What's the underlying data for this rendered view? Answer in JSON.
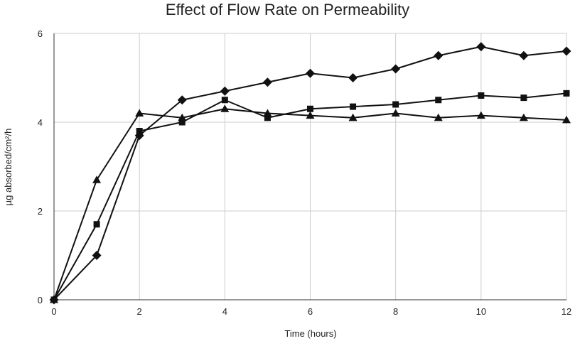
{
  "chart_data": {
    "type": "line",
    "title": "Effect of Flow Rate on Permeability",
    "xlabel": "Time (hours)",
    "ylabel": "µg absorbed/cm²/h",
    "xlim": [
      0,
      12
    ],
    "ylim": [
      0,
      6
    ],
    "x_ticks": [
      "0",
      "2",
      "4",
      "6",
      "8",
      "10",
      "12"
    ],
    "y_ticks": [
      "0",
      "2",
      "4",
      "6"
    ],
    "grid": true,
    "legend": "none",
    "line_color": "#111111",
    "grid_color": "#cccccc",
    "series": [
      {
        "name": "diamond",
        "marker": "diamond",
        "x": [
          0,
          1,
          2,
          3,
          4,
          5,
          6,
          7,
          8,
          9,
          10,
          11,
          12
        ],
        "values": [
          0,
          1.0,
          3.7,
          4.5,
          4.7,
          4.9,
          5.1,
          5.0,
          5.2,
          5.5,
          5.7,
          5.5,
          5.6
        ]
      },
      {
        "name": "square",
        "marker": "square",
        "x": [
          0,
          1,
          2,
          3,
          4,
          5,
          6,
          7,
          8,
          9,
          10,
          11,
          12
        ],
        "values": [
          0,
          1.7,
          3.8,
          4.0,
          4.5,
          4.1,
          4.3,
          4.35,
          4.4,
          4.5,
          4.6,
          4.55,
          4.65
        ]
      },
      {
        "name": "triangle",
        "marker": "triangle",
        "x": [
          0,
          1,
          2,
          3,
          4,
          5,
          6,
          7,
          8,
          9,
          10,
          11,
          12
        ],
        "values": [
          0,
          2.7,
          4.2,
          4.1,
          4.3,
          4.2,
          4.15,
          4.1,
          4.2,
          4.1,
          4.15,
          4.1,
          4.05
        ]
      }
    ]
  }
}
